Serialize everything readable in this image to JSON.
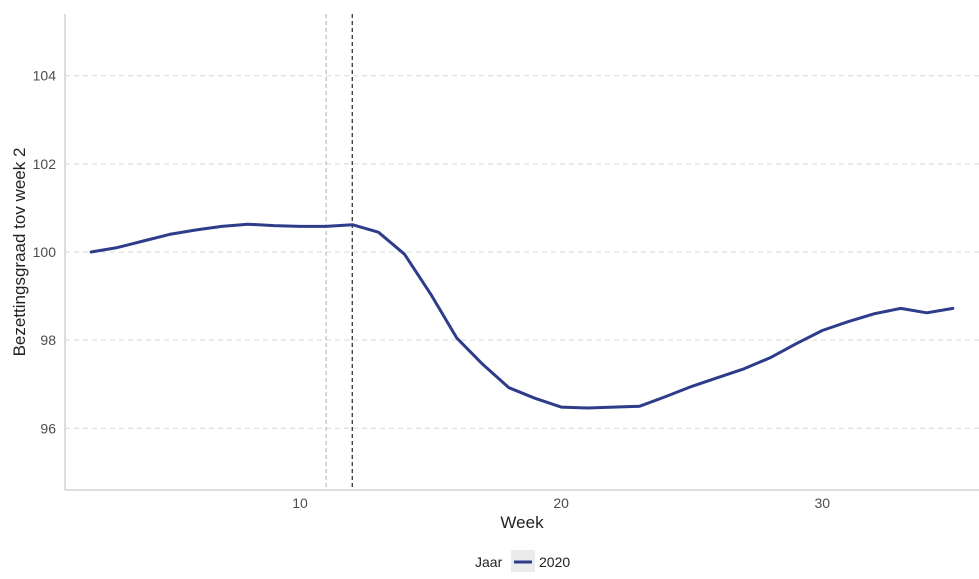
{
  "chart_data": {
    "type": "line",
    "xlabel": "Week",
    "ylabel": "Bezettingsgraad tov week 2",
    "xlim": [
      1,
      36
    ],
    "ylim": [
      94.6,
      105.4
    ],
    "x_ticks": [
      10,
      20,
      30
    ],
    "y_ticks": [
      96,
      98,
      100,
      102,
      104
    ],
    "grid": "horizontal-dashed",
    "vlines": [
      {
        "x": 11,
        "style": "dashed",
        "color": "#bdbdbd"
      },
      {
        "x": 12,
        "style": "dashed",
        "color": "#222222"
      }
    ],
    "series": [
      {
        "name": "2020",
        "color": "#2e3c8a",
        "x": [
          2,
          3,
          4,
          5,
          6,
          7,
          8,
          9,
          10,
          11,
          12,
          13,
          14,
          15,
          16,
          17,
          18,
          19,
          20,
          21,
          22,
          23,
          24,
          25,
          26,
          27,
          28,
          29,
          30,
          31,
          32,
          33,
          34,
          35
        ],
        "y": [
          100.0,
          100.1,
          100.25,
          100.4,
          100.5,
          100.58,
          100.63,
          100.6,
          100.58,
          100.58,
          100.62,
          100.45,
          99.95,
          99.05,
          98.05,
          97.45,
          96.92,
          96.68,
          96.48,
          96.46,
          96.48,
          96.5,
          96.72,
          96.95,
          97.15,
          97.35,
          97.6,
          97.92,
          98.22,
          98.42,
          98.6,
          98.72,
          98.62,
          98.72
        ]
      }
    ],
    "legend": {
      "title": "Jaar",
      "position": "bottom",
      "entries": [
        "2020"
      ]
    }
  }
}
